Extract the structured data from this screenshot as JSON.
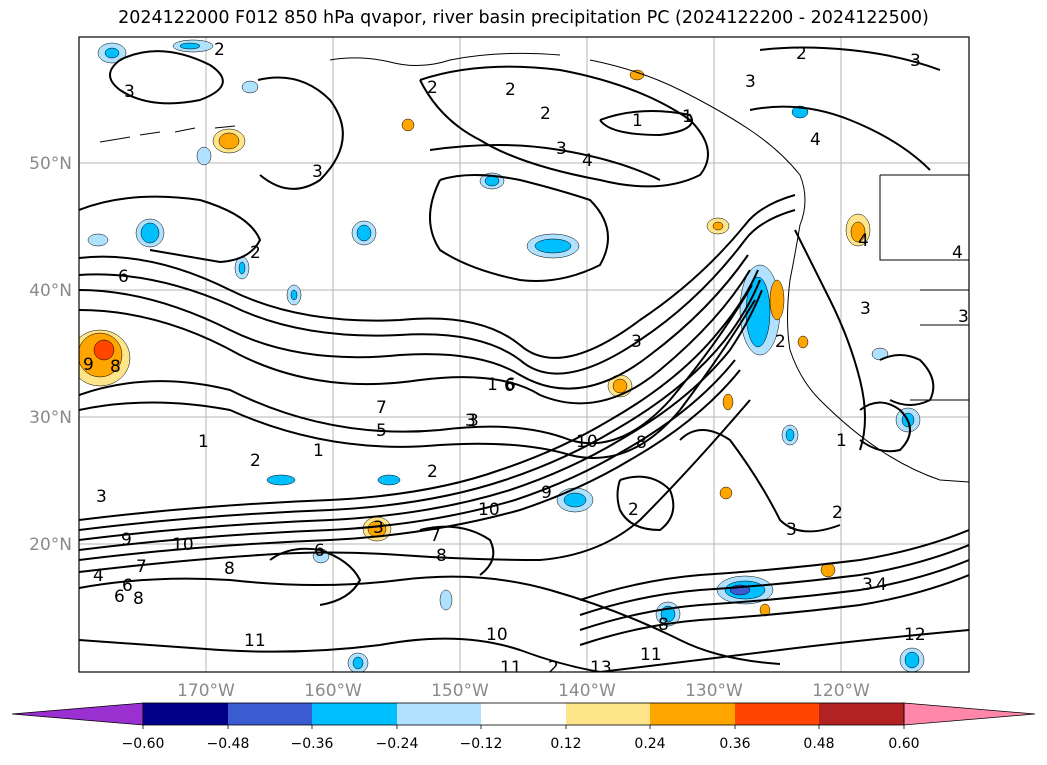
{
  "title": "2024122000 F012 850 hPa qvapor, river basin precipitation PC (2024122200 - 2024122500)",
  "lat_labels": [
    "50°N",
    "40°N",
    "30°N",
    "20°N"
  ],
  "lon_labels": [
    "170°W",
    "160°W",
    "150°W",
    "140°W",
    "130°W",
    "120°W"
  ],
  "colorbar": {
    "ticks": [
      "−0.60",
      "−0.48",
      "−0.36",
      "−0.24",
      "−0.12",
      "0.12",
      "0.24",
      "0.36",
      "0.48",
      "0.60"
    ],
    "colors": [
      "#9b30d0",
      "#00008b",
      "#3a5cd0",
      "#00bfff",
      "#b0e2ff",
      "#ffffff",
      "#ffe58a",
      "#ffa500",
      "#ff4500",
      "#b22222",
      "#ff88aa"
    ]
  },
  "contour_labels": [
    "2",
    "3",
    "2",
    "2",
    "2",
    "3",
    "1",
    "1",
    "3",
    "4",
    "2",
    "4",
    "3",
    "3",
    "2",
    "4",
    "3",
    "4",
    "6",
    "3",
    "2",
    "9",
    "8",
    "6",
    "3",
    "2",
    "7",
    "5",
    "3",
    "1",
    "2",
    "1",
    "2",
    "10",
    "8",
    "9",
    "10",
    "2",
    "7",
    "3",
    "1",
    "4",
    "9",
    "10",
    "3",
    "6",
    "8",
    "7",
    "8",
    "4",
    "6",
    "8",
    "6",
    "8",
    "11",
    "10",
    "11",
    "13",
    "11",
    "12",
    "3",
    "6",
    "1",
    "2",
    "3",
    "3"
  ]
}
